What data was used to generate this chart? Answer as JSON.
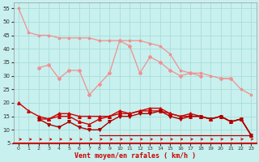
{
  "xlabel": "Vent moyen/en rafales ( km/h )",
  "bg_color": "#c8f0ee",
  "grid_color": "#a8ddd8",
  "x": [
    0,
    1,
    2,
    3,
    4,
    5,
    6,
    7,
    8,
    9,
    10,
    11,
    12,
    13,
    14,
    15,
    16,
    17,
    18,
    19,
    20,
    21,
    22,
    23
  ],
  "line_rafales_smooth": [
    55,
    46,
    45,
    45,
    44,
    44,
    44,
    44,
    43,
    43,
    43,
    43,
    43,
    42,
    41,
    38,
    32,
    31,
    31,
    30,
    29,
    29,
    25,
    23
  ],
  "line_rafales_jagged": [
    null,
    null,
    33,
    34,
    29,
    32,
    32,
    23,
    27,
    31,
    43,
    41,
    31,
    37,
    35,
    32,
    30,
    31,
    30,
    null,
    29,
    29,
    null,
    null
  ],
  "line_vent1": [
    20,
    17,
    15,
    14,
    16,
    16,
    15,
    15,
    15,
    15,
    17,
    16,
    17,
    18,
    18,
    16,
    15,
    16,
    15,
    14,
    15,
    13,
    14,
    8
  ],
  "line_vent2": [
    null,
    null,
    14,
    14,
    15,
    15,
    13,
    12,
    14,
    15,
    16,
    16,
    17,
    17,
    17,
    16,
    15,
    15,
    15,
    14,
    15,
    13,
    14,
    8
  ],
  "line_vent3": [
    null,
    null,
    14,
    12,
    11,
    13,
    11,
    10,
    10,
    13,
    15,
    15,
    16,
    16,
    17,
    15,
    14,
    15,
    15,
    14,
    15,
    13,
    14,
    8
  ],
  "line_vent_flat": [
    null,
    null,
    null,
    null,
    null,
    null,
    null,
    null,
    8,
    8,
    8,
    8,
    8,
    8,
    8,
    8,
    8,
    8,
    8,
    8,
    8,
    8,
    8,
    8
  ],
  "color_light": "#f09090",
  "color_dark": "#cc0000",
  "color_dark2": "#aa0000",
  "ylim": [
    5,
    57
  ],
  "yticks": [
    5,
    10,
    15,
    20,
    25,
    30,
    35,
    40,
    45,
    50,
    55
  ],
  "xticks": [
    0,
    1,
    2,
    3,
    4,
    5,
    6,
    7,
    8,
    9,
    10,
    11,
    12,
    13,
    14,
    15,
    16,
    17,
    18,
    19,
    20,
    21,
    22,
    23
  ]
}
